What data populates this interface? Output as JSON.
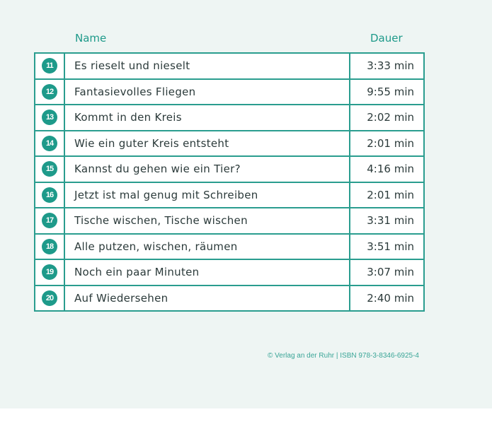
{
  "header": {
    "name": "Name",
    "duration": "Dauer"
  },
  "tracks": [
    {
      "num": "11",
      "title": "Es rieselt und nieselt",
      "duration": "3:33 min"
    },
    {
      "num": "12",
      "title": "Fantasievolles Fliegen",
      "duration": "9:55 min"
    },
    {
      "num": "13",
      "title": "Kommt in den Kreis",
      "duration": "2:02 min"
    },
    {
      "num": "14",
      "title": "Wie ein guter Kreis entsteht",
      "duration": "2:01 min"
    },
    {
      "num": "15",
      "title": "Kannst du gehen wie ein Tier?",
      "duration": "4:16 min"
    },
    {
      "num": "16",
      "title": "Jetzt ist mal genug mit Schreiben",
      "duration": "2:01 min"
    },
    {
      "num": "17",
      "title": "Tische wischen, Tische wischen",
      "duration": "3:31 min"
    },
    {
      "num": "18",
      "title": "Alle putzen, wischen, räumen",
      "duration": "3:51 min"
    },
    {
      "num": "19",
      "title": "Noch ein paar Minuten",
      "duration": "3:07 min"
    },
    {
      "num": "20",
      "title": "Auf Wiedersehen",
      "duration": "2:40 min"
    }
  ],
  "footer": "© Verlag an der Ruhr | ISBN 978-3-8346-6925-4",
  "colors": {
    "accent": "#1e9a8a",
    "background": "#eef5f3",
    "text": "#2b3a3a"
  }
}
